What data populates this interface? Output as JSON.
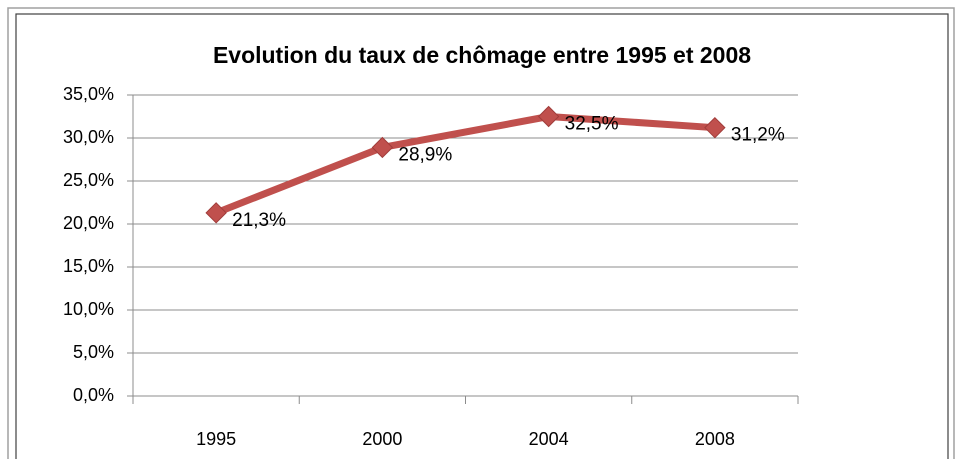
{
  "chart_data": {
    "type": "line",
    "title": "Evolution du taux de chômage entre 1995 et 2008",
    "categories": [
      "1995",
      "2000",
      "2004",
      "2008"
    ],
    "series": [
      {
        "name": "Taux de chômage",
        "color": "#c0504d",
        "values": [
          21.3,
          28.9,
          32.5,
          31.2
        ],
        "value_labels": [
          "21,3%",
          "28,9%",
          "32,5%",
          "31,2%"
        ]
      }
    ],
    "ylim": [
      0,
      35
    ],
    "yticks": [
      {
        "value": 0,
        "label": "0,0%"
      },
      {
        "value": 5,
        "label": "5,0%"
      },
      {
        "value": 10,
        "label": "10,0%"
      },
      {
        "value": 15,
        "label": "15,0%"
      },
      {
        "value": 20,
        "label": "20,0%"
      },
      {
        "value": 25,
        "label": "25,0%"
      },
      {
        "value": 30,
        "label": "30,0%"
      },
      {
        "value": 35,
        "label": "35,0%"
      }
    ],
    "grid": true
  }
}
